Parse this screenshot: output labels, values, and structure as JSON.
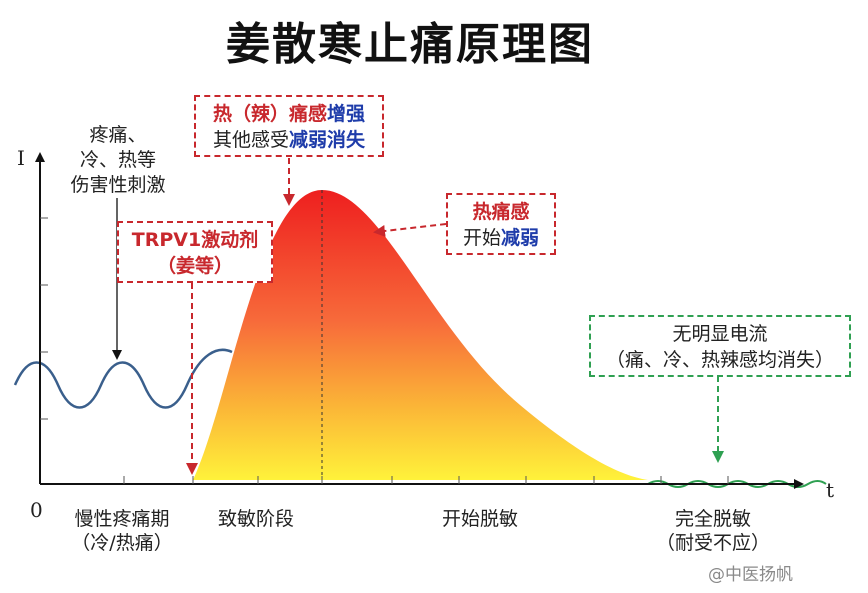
{
  "title": "姜散寒止痛原理图",
  "axes": {
    "y_label": "I",
    "x_label": "t",
    "origin_label": "0"
  },
  "noxious_note": [
    "疼痛、",
    "冷、热等",
    "伤害性刺激"
  ],
  "boxes": {
    "agonist": {
      "line1": "TRPV1激动剂",
      "line2": "（姜等）"
    },
    "peak": {
      "line1_a": "热（辣）痛感",
      "line1_b": "增强",
      "line2_a": "其他感受",
      "line2_b": "减弱消失"
    },
    "weaken": {
      "line1": "热痛感",
      "line2_a": "开始",
      "line2_b": "减弱"
    },
    "no_current": {
      "line1": "无明显电流",
      "line2": "（痛、冷、热辣感均消失）"
    }
  },
  "stages": [
    {
      "line1": "慢性疼痛期",
      "line2": "（冷/热痛）"
    },
    {
      "line1": "致敏阶段",
      "line2": ""
    },
    {
      "line1": "开始脱敏",
      "line2": ""
    },
    {
      "line1": "完全脱敏",
      "line2": "（耐受不应）"
    }
  ],
  "watermark": "@中医扬帆",
  "colors": {
    "red": "#c8282d",
    "blue": "#1e3caa",
    "green": "#2fa052",
    "curve_top": "#ee1f1f",
    "curve_bottom": "#fff23a",
    "wave": "#3a5f8c"
  }
}
